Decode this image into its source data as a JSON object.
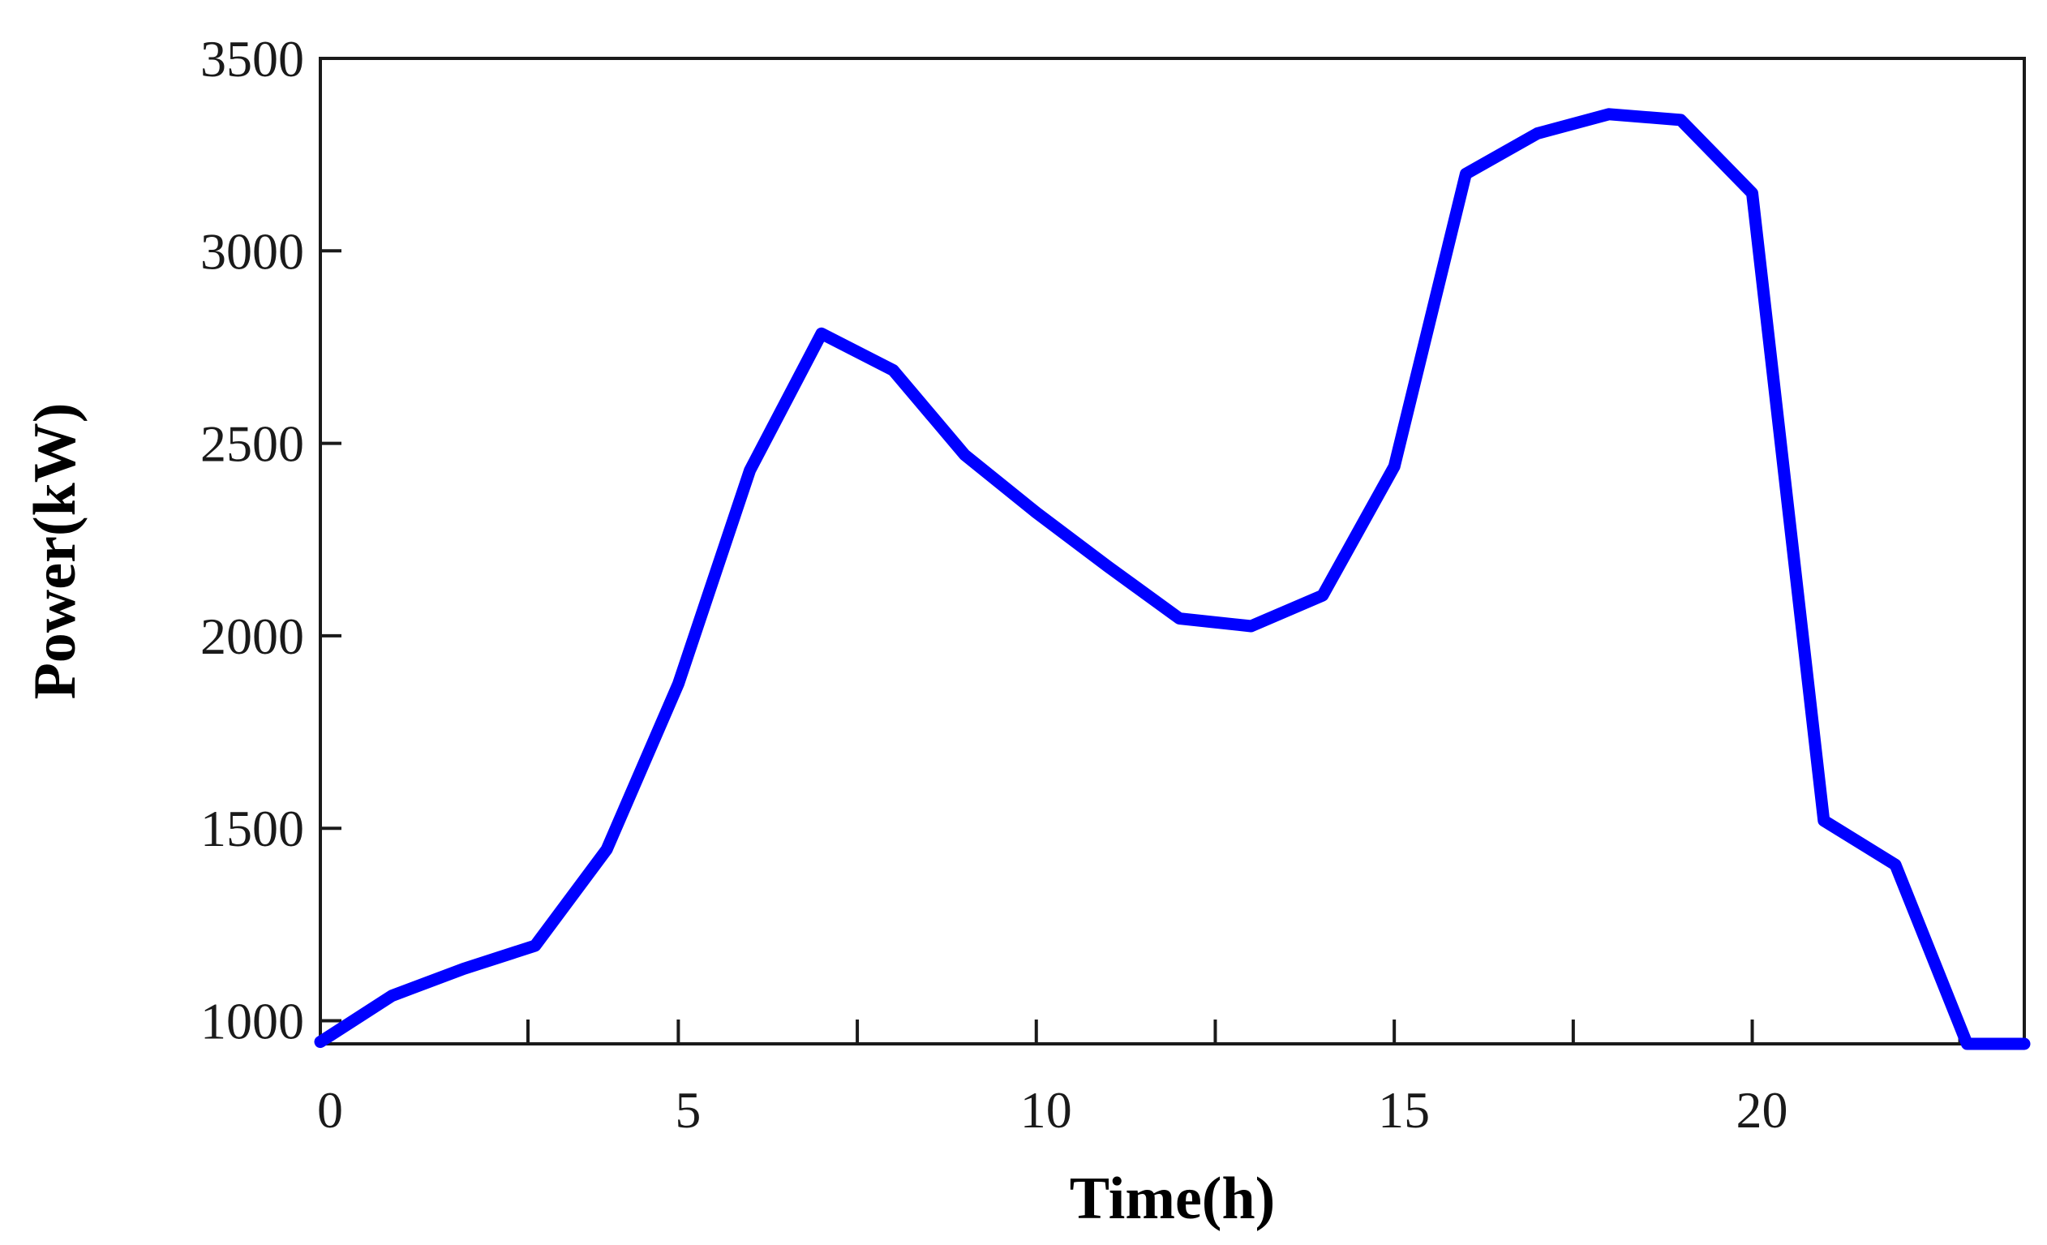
{
  "chart_data": {
    "type": "line",
    "xlabel": "Time(h)",
    "ylabel": "Power(kW)",
    "xlim": [
      0,
      23.8
    ],
    "ylim": [
      940,
      3500
    ],
    "x_ticks": [
      0,
      5,
      10,
      15,
      20
    ],
    "x_minor_ticks": [
      2.9,
      5,
      7.5,
      10,
      12.5,
      15,
      17.5,
      20,
      22.9
    ],
    "y_ticks": [
      1000,
      1500,
      2000,
      2500,
      3000,
      3500
    ],
    "grid": false,
    "line_color": "#0000FF",
    "series": [
      {
        "x": [
          0,
          1,
          2,
          3,
          4,
          5,
          6,
          7,
          8,
          9,
          10,
          11,
          12,
          13,
          14,
          15,
          16,
          17,
          18,
          19,
          20,
          21,
          22,
          23,
          23.8
        ],
        "values": [
          945,
          1065,
          1135,
          1195,
          1445,
          1875,
          2430,
          2785,
          2690,
          2470,
          2320,
          2180,
          2045,
          2025,
          2105,
          2440,
          3200,
          3305,
          3355,
          3340,
          3150,
          1520,
          1405,
          940,
          940
        ]
      }
    ]
  }
}
